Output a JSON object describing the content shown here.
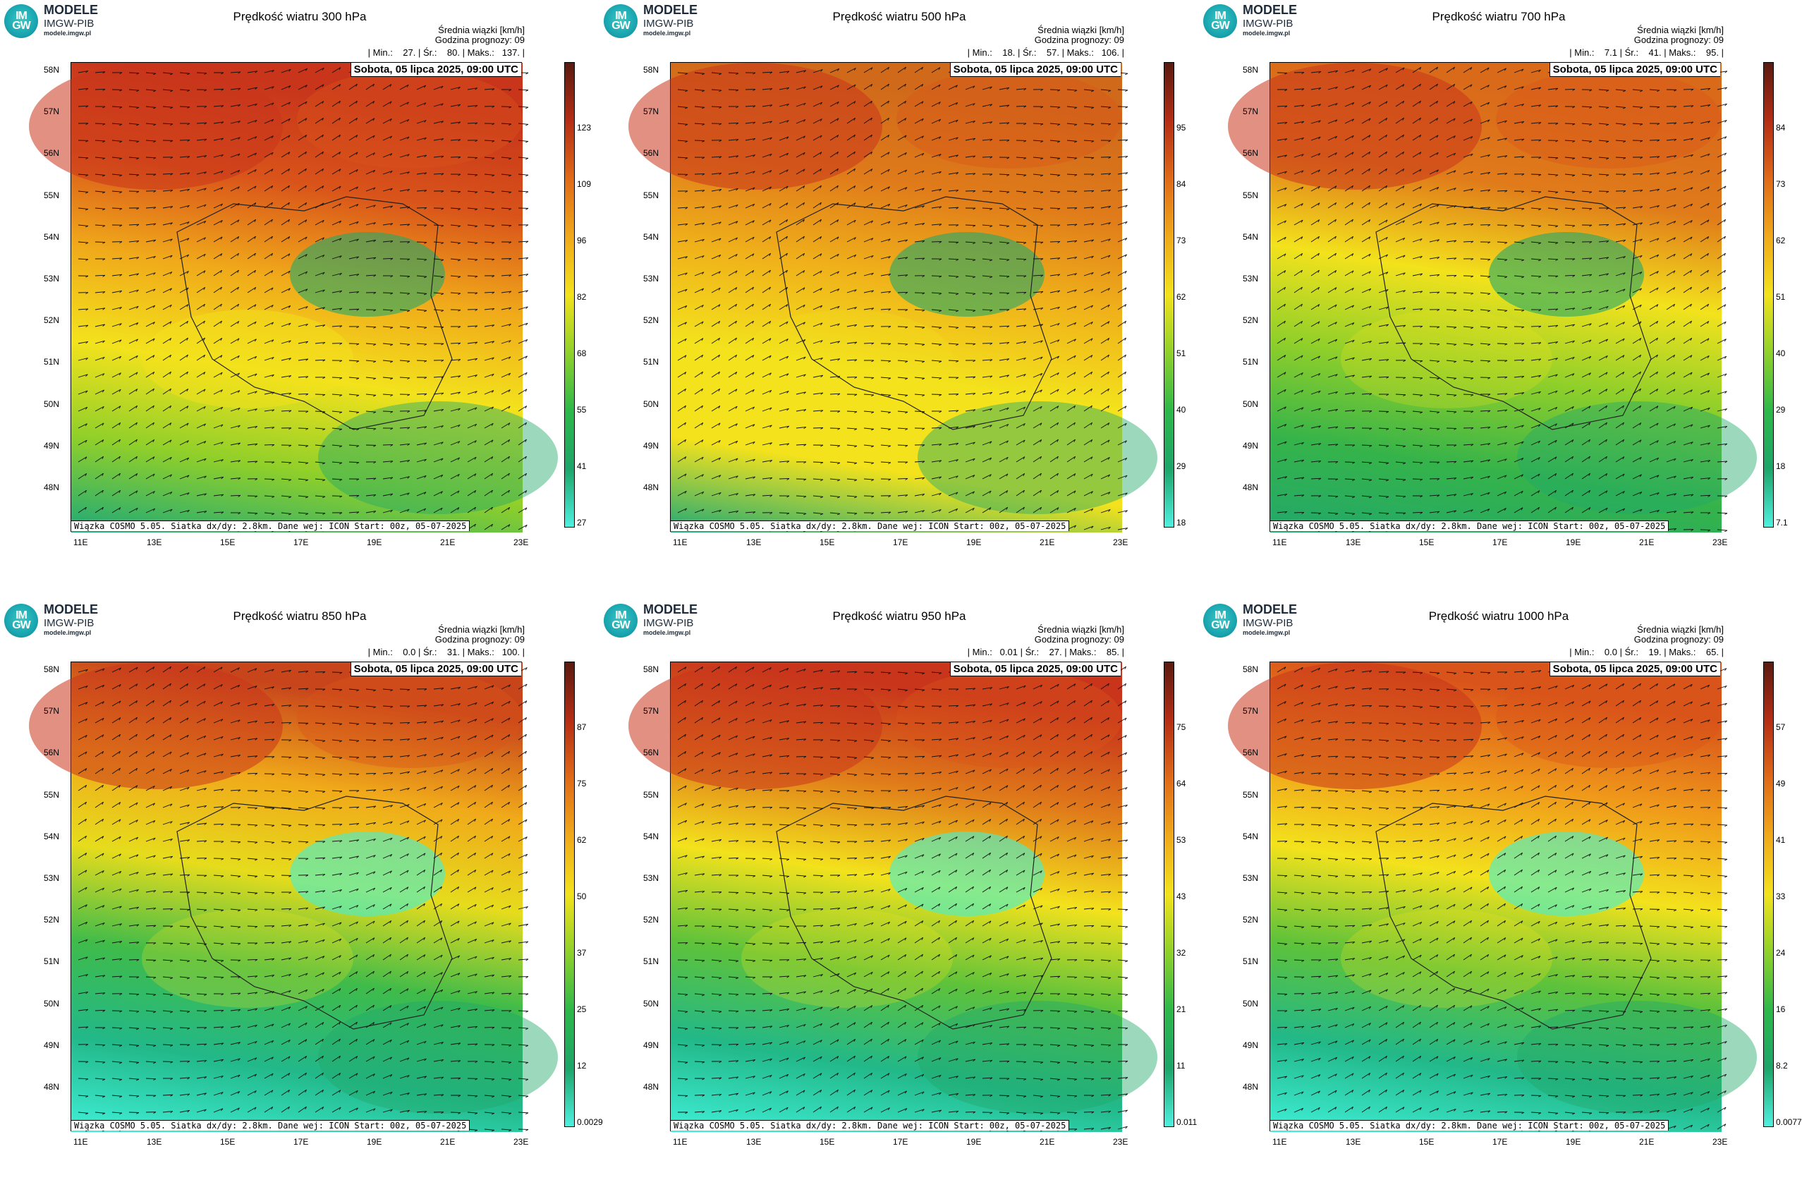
{
  "logo": {
    "text_top": "IM",
    "text_bottom": "GW",
    "brand_line1": "MODELE",
    "brand_line2": "IMGW-PIB",
    "brand_line3": "modele.imgw.pl"
  },
  "panels": [
    {
      "title": "Prędkość wiatru 300 hPa",
      "unit_line": "Średnia wiązki [km/h]",
      "forecast_line": "Godzina prognozy: 09",
      "stats": "| Min.:    27. | Śr.:    80. | Maks.:   137. |",
      "date": "Sobota, 05 lipca 2025, 09:00 UTC",
      "footer": "Wiązka COSMO 5.05. Siatka dx/dy: 2.8km. Dane wej: ICON Start: 00z, 05-07-2025",
      "colorbar_ticks": [
        "27",
        "41",
        "55",
        "68",
        "82",
        "96",
        "109",
        "123"
      ]
    },
    {
      "title": "Prędkość wiatru 500 hPa",
      "unit_line": "Średnia wiązki [km/h]",
      "forecast_line": "Godzina prognozy: 09",
      "stats": "| Min.:    18. | Śr.:    57. | Maks.:   106. |",
      "date": "Sobota, 05 lipca 2025, 09:00 UTC",
      "footer": "Wiązka COSMO 5.05. Siatka dx/dy: 2.8km. Dane wej: ICON Start: 00z, 05-07-2025",
      "colorbar_ticks": [
        "18",
        "29",
        "40",
        "51",
        "62",
        "73",
        "84",
        "95"
      ]
    },
    {
      "title": "Prędkość wiatru 700 hPa",
      "unit_line": "Średnia wiązki [km/h]",
      "forecast_line": "Godzina prognozy: 09",
      "stats": "| Min.:    7.1 | Śr.:    41. | Maks.:    95. |",
      "date": "Sobota, 05 lipca 2025, 09:00 UTC",
      "footer": "Wiązka COSMO 5.05. Siatka dx/dy: 2.8km. Dane wej: ICON Start: 00z, 05-07-2025",
      "colorbar_ticks": [
        "7.1",
        "18",
        "29",
        "40",
        "51",
        "62",
        "73",
        "84"
      ]
    },
    {
      "title": "Prędkość wiatru 850 hPa",
      "unit_line": "Średnia wiązki [km/h]",
      "forecast_line": "Godzina prognozy: 09",
      "stats": "| Min.:    0.0 | Śr.:    31. | Maks.:   100. |",
      "date": "Sobota, 05 lipca 2025, 09:00 UTC",
      "footer": "Wiązka COSMO 5.05. Siatka dx/dy: 2.8km. Dane wej: ICON Start: 00z, 05-07-2025",
      "colorbar_ticks": [
        "0.0029",
        "12",
        "25",
        "37",
        "50",
        "62",
        "75",
        "87"
      ]
    },
    {
      "title": "Prędkość wiatru 950 hPa",
      "unit_line": "Średnia wiązki [km/h]",
      "forecast_line": "Godzina prognozy: 09",
      "stats": "| Min.:   0.01 | Śr.:    27. | Maks.:    85. |",
      "date": "Sobota, 05 lipca 2025, 09:00 UTC",
      "footer": "Wiązka COSMO 5.05. Siatka dx/dy: 2.8km. Dane wej: ICON Start: 00z, 05-07-2025",
      "colorbar_ticks": [
        "0.011",
        "11",
        "21",
        "32",
        "43",
        "53",
        "64",
        "75"
      ]
    },
    {
      "title": "Prędkość wiatru 1000 hPa",
      "unit_line": "Średnia wiązki [km/h]",
      "forecast_line": "Godzina prognozy: 09",
      "stats": "| Min.:    0.0 | Śr.:    19. | Maks.:    65. |",
      "date": "Sobota, 05 lipca 2025, 09:00 UTC",
      "footer": "Wiązka COSMO 5.05. Siatka dx/dy: 2.8km. Dane wej: ICON Start: 00z, 05-07-2025",
      "colorbar_ticks": [
        "0.0077",
        "8.2",
        "16",
        "24",
        "33",
        "41",
        "49",
        "57"
      ]
    }
  ],
  "lat_labels": [
    "58N",
    "57N",
    "56N",
    "55N",
    "54N",
    "53N",
    "52N",
    "51N",
    "50N",
    "49N",
    "48N"
  ],
  "lon_labels": [
    "11E",
    "13E",
    "15E",
    "17E",
    "19E",
    "21E",
    "23E"
  ],
  "colors": {
    "low": "#3ff0d8",
    "green": "#22a86a",
    "yellow": "#f3e21c",
    "orange": "#f09a1a",
    "red": "#c8351b",
    "darkred": "#5a1a10"
  }
}
